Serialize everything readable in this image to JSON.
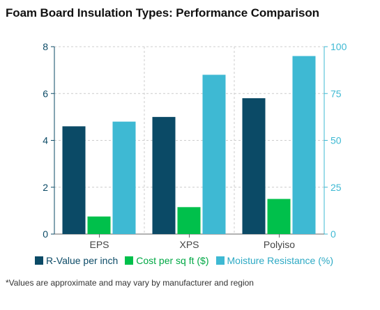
{
  "title": "Foam Board Insulation Types: Performance Comparison",
  "footnote": "*Values are approximate and may vary by manufacturer and region",
  "colors": {
    "r_value": "#0b4a66",
    "cost": "#00c04b",
    "moisture": "#3eb9d3",
    "grid": "#cccccc",
    "left_axis": "#0b4a66",
    "right_axis": "#3eb9d3"
  },
  "chart_data": {
    "type": "bar",
    "categories": [
      "EPS",
      "XPS",
      "Polyiso"
    ],
    "series": [
      {
        "name": "R-Value per inch",
        "axis": "left",
        "color": "#0b4a66",
        "values": [
          4.6,
          5.0,
          5.8
        ]
      },
      {
        "name": "Cost per sq ft ($)",
        "axis": "left",
        "color": "#00c04b",
        "values": [
          0.75,
          1.15,
          1.5
        ]
      },
      {
        "name": "Moisture Resistance (%)",
        "axis": "right",
        "color": "#3eb9d3",
        "values": [
          60,
          85,
          95
        ]
      }
    ],
    "y_left": {
      "min": 0,
      "max": 8,
      "ticks": [
        "0",
        "2",
        "4",
        "6",
        "8"
      ]
    },
    "y_right": {
      "min": 0,
      "max": 100,
      "ticks": [
        "0",
        "25",
        "50",
        "75",
        "100"
      ]
    },
    "grid": true,
    "legend_position": "bottom"
  }
}
